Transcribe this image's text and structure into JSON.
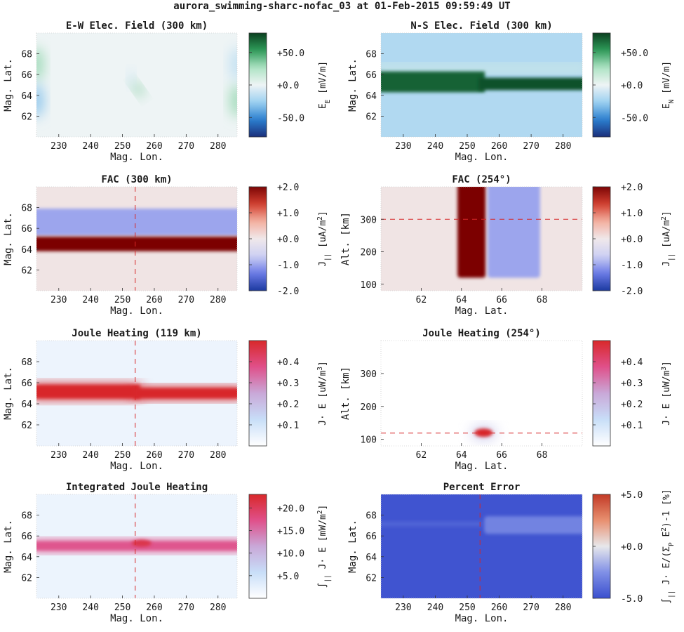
{
  "figure": {
    "title": "aurora_swimming-sharc-nofac_03 at 01-Feb-2015 09:59:49 UT"
  },
  "colormaps": {
    "efield": [
      "#1b2f7a",
      "#2b7fd0",
      "#9cd0f0",
      "#eef4f5",
      "#aee3c4",
      "#2e9b59",
      "#0a4020"
    ],
    "fac": [
      "#1c3aa0",
      "#6a7ae6",
      "#cdd0f3",
      "#f0e8ea",
      "#f3b0a0",
      "#d24030",
      "#7c0505"
    ],
    "joule": [
      "#ffffff",
      "#c8def8",
      "#c9a8d8",
      "#e0508a",
      "#d8282a"
    ],
    "error": [
      "#3a4fce",
      "#8090e6",
      "#e7e7eb",
      "#e89070",
      "#c23a26"
    ]
  },
  "chart_data": [
    {
      "id": "ew-efield",
      "type": "heatmap",
      "title": "E-W Elec. Field (300 km)",
      "xlabel": "Mag. Lon.",
      "ylabel": "Mag. Lat.",
      "xlim": [
        223,
        286
      ],
      "ylim": [
        60,
        70
      ],
      "xticks": [
        230,
        240,
        250,
        260,
        270,
        280
      ],
      "yticks": [
        62,
        64,
        66,
        68
      ],
      "colorbar": {
        "label": "E_E [mV/m]",
        "cmap": "efield",
        "vmin": -80,
        "vmax": 80,
        "ticks": [
          50,
          0,
          -50
        ],
        "tick_labels": [
          "+50.0",
          "+0.0",
          "-50.0"
        ]
      },
      "field_summary": [
        {
          "feature": "positive patch",
          "lon": 223,
          "lat": 67,
          "value": 30
        },
        {
          "feature": "negative patch",
          "lon": 223,
          "lat": 63.5,
          "value": -30
        },
        {
          "feature": "positive patch",
          "lon": 286,
          "lat": 63.5,
          "value": 30
        },
        {
          "feature": "negative patch",
          "lon": 286,
          "lat": 67,
          "value": -15
        },
        {
          "feature": "dipole",
          "lon": 254,
          "lat": 65,
          "value": 35
        }
      ]
    },
    {
      "id": "ns-efield",
      "type": "heatmap",
      "title": "N-S Elec. Field (300 km)",
      "xlabel": "Mag. Lon.",
      "ylabel": "Mag. Lat.",
      "xlim": [
        223,
        286
      ],
      "ylim": [
        60,
        70
      ],
      "xticks": [
        230,
        240,
        250,
        260,
        270,
        280
      ],
      "yticks": [
        62,
        64,
        66,
        68
      ],
      "colorbar": {
        "label": "E_N [mV/m]",
        "cmap": "efield",
        "vmin": -80,
        "vmax": 80,
        "ticks": [
          50,
          0,
          -50
        ],
        "tick_labels": [
          "+50.0",
          "+0.0",
          "-50.0"
        ]
      },
      "field_summary": [
        {
          "feature": "background",
          "value": -20
        },
        {
          "feature": "strong positive band west of 255",
          "lat_range": [
            64.3,
            66.3
          ],
          "value": 70
        },
        {
          "feature": "strong positive band east of 255",
          "lat_range": [
            64.5,
            65.7
          ],
          "value": 75
        },
        {
          "feature": "weak positive strip",
          "lat_range": [
            66.3,
            66.9
          ],
          "value": 10
        }
      ]
    },
    {
      "id": "fac-300",
      "type": "heatmap",
      "title": "FAC (300 km)",
      "xlabel": "Mag. Lon.",
      "ylabel": "Mag. Lat.",
      "xlim": [
        223,
        286
      ],
      "ylim": [
        60,
        70
      ],
      "xticks": [
        230,
        240,
        250,
        260,
        270,
        280
      ],
      "yticks": [
        62,
        64,
        66,
        68
      ],
      "marker_line": {
        "orientation": "vertical",
        "value": 254
      },
      "colorbar": {
        "label": "J_|| [uA/m^2]",
        "cmap": "fac",
        "vmin": -2,
        "vmax": 2,
        "ticks": [
          2,
          1,
          0,
          -1,
          -2
        ],
        "tick_labels": [
          "+2.0",
          "+1.0",
          "+0.0",
          "-1.0",
          "-2.0"
        ]
      },
      "field_summary": [
        {
          "feature": "background",
          "value": 0.05
        },
        {
          "feature": "downward current band",
          "lat_range": [
            65.3,
            67.9
          ],
          "value": -1.0
        },
        {
          "feature": "upward current band",
          "lat_range": [
            63.8,
            65.2
          ],
          "value": 2.0
        }
      ]
    },
    {
      "id": "fac-254",
      "type": "heatmap",
      "title": "FAC (254°)",
      "xlabel": "Mag. Lat.",
      "ylabel": "Alt. [km]",
      "xlim": [
        60,
        70
      ],
      "ylim": [
        80,
        400
      ],
      "xticks": [
        62,
        64,
        66,
        68
      ],
      "yticks": [
        100,
        200,
        300
      ],
      "marker_line": {
        "orientation": "horizontal",
        "value": 300
      },
      "colorbar": {
        "label": "J_|| [uA/m^2]",
        "cmap": "fac",
        "vmin": -2,
        "vmax": 2,
        "ticks": [
          2,
          1,
          0,
          -1,
          -2
        ],
        "tick_labels": [
          "+2.0",
          "+1.0",
          "+0.0",
          "-1.0",
          "-2.0"
        ]
      },
      "field_summary": [
        {
          "feature": "background",
          "value": 0.05
        },
        {
          "feature": "upward current column",
          "lat_range": [
            63.8,
            65.2
          ],
          "alt_range": [
            120,
            400
          ],
          "value": 2.0
        },
        {
          "feature": "downward current column",
          "lat_range": [
            65.3,
            67.9
          ],
          "alt_range": [
            120,
            400
          ],
          "value": -1.0
        }
      ]
    },
    {
      "id": "joule-119",
      "type": "heatmap",
      "title": "Joule Heating (119 km)",
      "xlabel": "Mag. Lon.",
      "ylabel": "Mag. Lat.",
      "xlim": [
        223,
        286
      ],
      "ylim": [
        60,
        70
      ],
      "xticks": [
        230,
        240,
        250,
        260,
        270,
        280
      ],
      "yticks": [
        62,
        64,
        66,
        68
      ],
      "marker_line": {
        "orientation": "vertical",
        "value": 254
      },
      "colorbar": {
        "label": "J· E [uW/m^3]",
        "cmap": "joule",
        "vmin": 0,
        "vmax": 0.5,
        "ticks": [
          0.4,
          0.3,
          0.2,
          0.1
        ],
        "tick_labels": [
          "+0.4",
          "+0.3",
          "+0.2",
          "+0.1"
        ]
      },
      "field_summary": [
        {
          "feature": "background",
          "value": 0.04
        },
        {
          "feature": "heating band west of 255",
          "lat_range": [
            64.5,
            65.8
          ],
          "value": 0.5
        },
        {
          "feature": "heating band east of 255",
          "lat_range": [
            64.5,
            65.5
          ],
          "value": 0.5
        }
      ]
    },
    {
      "id": "joule-254",
      "type": "heatmap",
      "title": "Joule Heating (254°)",
      "xlabel": "Mag. Lat.",
      "ylabel": "Alt. [km]",
      "xlim": [
        60,
        70
      ],
      "ylim": [
        80,
        400
      ],
      "xticks": [
        62,
        64,
        66,
        68
      ],
      "yticks": [
        100,
        200,
        300
      ],
      "marker_line": {
        "orientation": "horizontal",
        "value": 119
      },
      "colorbar": {
        "label": "J· E [uW/m^3]",
        "cmap": "joule",
        "vmin": 0,
        "vmax": 0.5,
        "ticks": [
          0.4,
          0.3,
          0.2,
          0.1
        ],
        "tick_labels": [
          "+0.4",
          "+0.3",
          "+0.2",
          "+0.1"
        ]
      },
      "field_summary": [
        {
          "feature": "background",
          "value": 0
        },
        {
          "feature": "heating blob",
          "lat": 65.1,
          "alt": 120,
          "value": 0.5
        }
      ]
    },
    {
      "id": "integrated-joule",
      "type": "heatmap",
      "title": "Integrated Joule Heating",
      "xlabel": "Mag. Lon.",
      "ylabel": "Mag. Lat.",
      "xlim": [
        223,
        286
      ],
      "ylim": [
        60,
        70
      ],
      "xticks": [
        230,
        240,
        250,
        260,
        270,
        280
      ],
      "yticks": [
        62,
        64,
        66,
        68
      ],
      "marker_line": {
        "orientation": "vertical",
        "value": 254
      },
      "colorbar": {
        "label": "∫_|| J· E [mW/m^2]",
        "cmap": "joule",
        "vmin": 0,
        "vmax": 23,
        "ticks": [
          20,
          15,
          10,
          5
        ],
        "tick_labels": [
          "+20.0",
          "+15.0",
          "+10.0",
          "+5.0"
        ]
      },
      "field_summary": [
        {
          "feature": "background",
          "value": 2
        },
        {
          "feature": "heating band",
          "lat_range": [
            64.6,
            65.5
          ],
          "value": 17
        },
        {
          "feature": "peak near 256",
          "lon": 256,
          "lat": 65.3,
          "value": 21
        }
      ]
    },
    {
      "id": "percent-error",
      "type": "heatmap",
      "title": "Percent Error",
      "xlabel": "Mag. Lon.",
      "ylabel": "Mag. Lat.",
      "xlim": [
        223,
        286
      ],
      "ylim": [
        60,
        70
      ],
      "xticks": [
        230,
        240,
        250,
        260,
        270,
        280
      ],
      "yticks": [
        62,
        64,
        66,
        68
      ],
      "marker_line": {
        "orientation": "vertical",
        "value": 254
      },
      "colorbar": {
        "label": "∫_|| J· E/(Σ_P E^2)-1 [%]",
        "cmap": "error",
        "vmin": -5,
        "vmax": 5,
        "ticks": [
          5,
          0,
          -5
        ],
        "tick_labels": [
          "+5.0",
          "+0.0",
          "-5.0"
        ]
      },
      "field_summary": [
        {
          "feature": "background",
          "value": -4.8
        },
        {
          "feature": "faint strip west of 255",
          "lat_range": [
            66.9,
            67.4
          ],
          "value": -4.2
        },
        {
          "feature": "raised band east of 255",
          "lat_range": [
            66.2,
            67.9
          ],
          "value": -3.0
        },
        {
          "feature": "faint line",
          "lat": 64.1,
          "value": -4.6
        }
      ]
    }
  ]
}
